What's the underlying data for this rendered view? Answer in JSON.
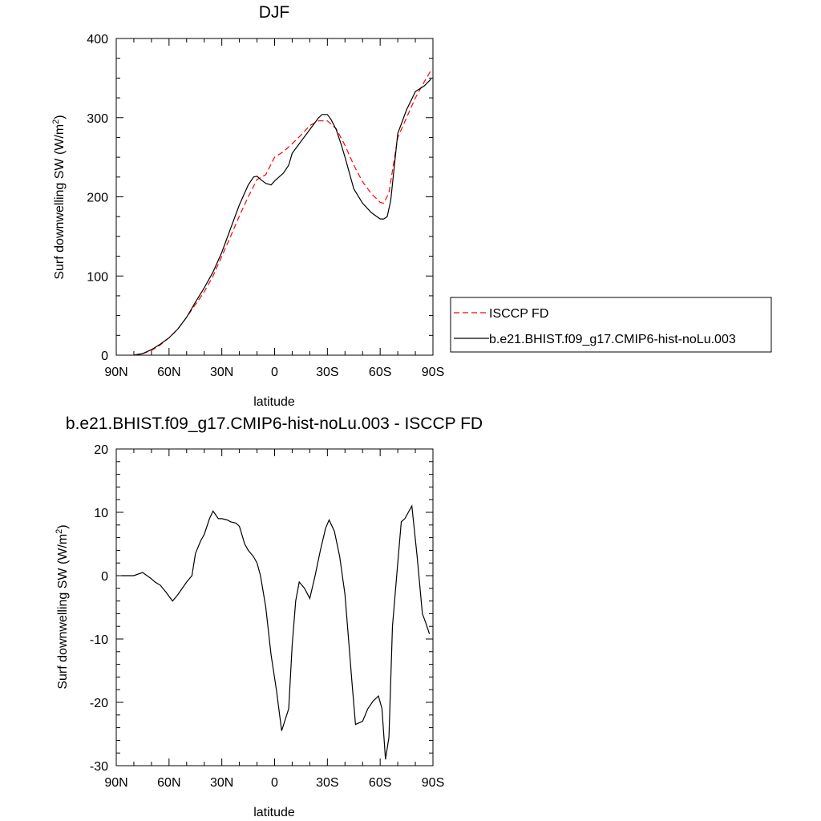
{
  "chart_data": [
    {
      "type": "line",
      "title": "DJF",
      "xlabel": "latitude",
      "ylabel": "Surf downwelling SW (W/m",
      "ylabel_sup": "2",
      "ylabel_close": ")",
      "xlim": [
        -90,
        90
      ],
      "ylim": [
        0,
        400
      ],
      "x_ticks": [
        -90,
        -60,
        -30,
        0,
        30,
        60,
        90
      ],
      "x_tick_labels": [
        "90N",
        "60N",
        "30N",
        "0",
        "30S",
        "60S",
        "90S"
      ],
      "y_ticks": [
        0,
        100,
        200,
        300,
        400
      ],
      "y_tick_labels": [
        "0",
        "100",
        "200",
        "300",
        "400"
      ],
      "legend_position": "right",
      "series": [
        {
          "name": "ISCCP FD",
          "style": "dashed",
          "color": "#ff0000",
          "x": [
            -80,
            -75,
            -70,
            -65,
            -60,
            -55,
            -50,
            -45,
            -40,
            -35,
            -30,
            -25,
            -20,
            -15,
            -10,
            -5,
            0,
            5,
            10,
            15,
            20,
            25,
            30,
            35,
            40,
            45,
            50,
            55,
            60,
            62,
            65,
            70,
            75,
            80,
            85,
            89
          ],
          "y": [
            0,
            2,
            6,
            13,
            22,
            33,
            48,
            64,
            80,
            100,
            125,
            150,
            176,
            200,
            222,
            228,
            250,
            257,
            267,
            278,
            290,
            296,
            296,
            286,
            265,
            240,
            219,
            204,
            193,
            192,
            205,
            275,
            300,
            325,
            345,
            360
          ]
        },
        {
          "name": "b.e21.BHIST.f09_g17.CMIP6-hist-noLu.003",
          "style": "solid",
          "color": "#000000",
          "x": [
            -80,
            -75,
            -70,
            -65,
            -60,
            -55,
            -50,
            -45,
            -40,
            -35,
            -30,
            -25,
            -20,
            -15,
            -12,
            -10,
            -8,
            -5,
            -2,
            0,
            3,
            5,
            8,
            10,
            15,
            20,
            25,
            27,
            30,
            32,
            35,
            38,
            40,
            45,
            50,
            55,
            60,
            62,
            64,
            66,
            70,
            75,
            80,
            85,
            89
          ],
          "y": [
            0,
            2,
            7,
            14,
            22,
            33,
            48,
            67,
            85,
            105,
            130,
            160,
            190,
            215,
            225,
            226,
            222,
            217,
            215,
            220,
            226,
            230,
            240,
            255,
            270,
            285,
            300,
            304,
            304,
            298,
            285,
            265,
            250,
            210,
            192,
            180,
            172,
            172,
            175,
            195,
            280,
            310,
            333,
            340,
            349
          ]
        }
      ]
    },
    {
      "type": "line",
      "title": "b.e21.BHIST.f09_g17.CMIP6-hist-noLu.003 - ISCCP FD",
      "xlabel": "latitude",
      "ylabel": "Surf downwelling SW (W/m",
      "ylabel_sup": "2",
      "ylabel_close": ")",
      "xlim": [
        -90,
        90
      ],
      "ylim": [
        -30,
        20
      ],
      "x_ticks": [
        -90,
        -60,
        -30,
        0,
        30,
        60,
        90
      ],
      "x_tick_labels": [
        "90N",
        "60N",
        "30N",
        "0",
        "30S",
        "60S",
        "90S"
      ],
      "y_ticks": [
        -30,
        -20,
        -10,
        0,
        10,
        20
      ],
      "y_tick_labels": [
        "-30",
        "-20",
        "-10",
        "0",
        "10",
        "20"
      ],
      "series": [
        {
          "style": "solid",
          "color": "#000000",
          "x": [
            -87,
            -80,
            -75,
            -70,
            -68,
            -65,
            -62,
            -58,
            -55,
            -50,
            -47,
            -45,
            -42,
            -40,
            -37,
            -35,
            -32,
            -30,
            -27,
            -25,
            -22,
            -20,
            -17,
            -15,
            -12,
            -10,
            -8,
            -5,
            -2,
            1,
            4,
            8,
            10,
            12,
            14,
            17,
            20,
            23,
            26,
            29,
            31,
            34,
            37,
            40,
            42,
            44,
            46,
            50,
            53,
            56,
            59,
            61,
            63,
            65,
            67,
            70,
            72,
            74,
            76,
            78,
            81,
            84,
            86,
            88
          ],
          "y": [
            0,
            0,
            0.5,
            -0.5,
            -1,
            -1.5,
            -2.5,
            -4,
            -3,
            -1,
            0,
            3.5,
            5.5,
            6.5,
            9,
            10.2,
            9,
            9,
            8.8,
            8.5,
            8.3,
            7.8,
            5,
            4,
            3,
            2,
            0,
            -5,
            -12.5,
            -18,
            -24.5,
            -21,
            -11,
            -4,
            -1,
            -2,
            -3.6,
            0,
            4,
            7.5,
            8.8,
            7,
            3,
            -3,
            -10,
            -17,
            -23.5,
            -23,
            -21,
            -19.8,
            -19,
            -21,
            -29,
            -25.5,
            -8,
            2,
            8.5,
            9,
            10,
            11,
            3,
            -6,
            -7.5,
            -9.2
          ]
        }
      ]
    }
  ]
}
